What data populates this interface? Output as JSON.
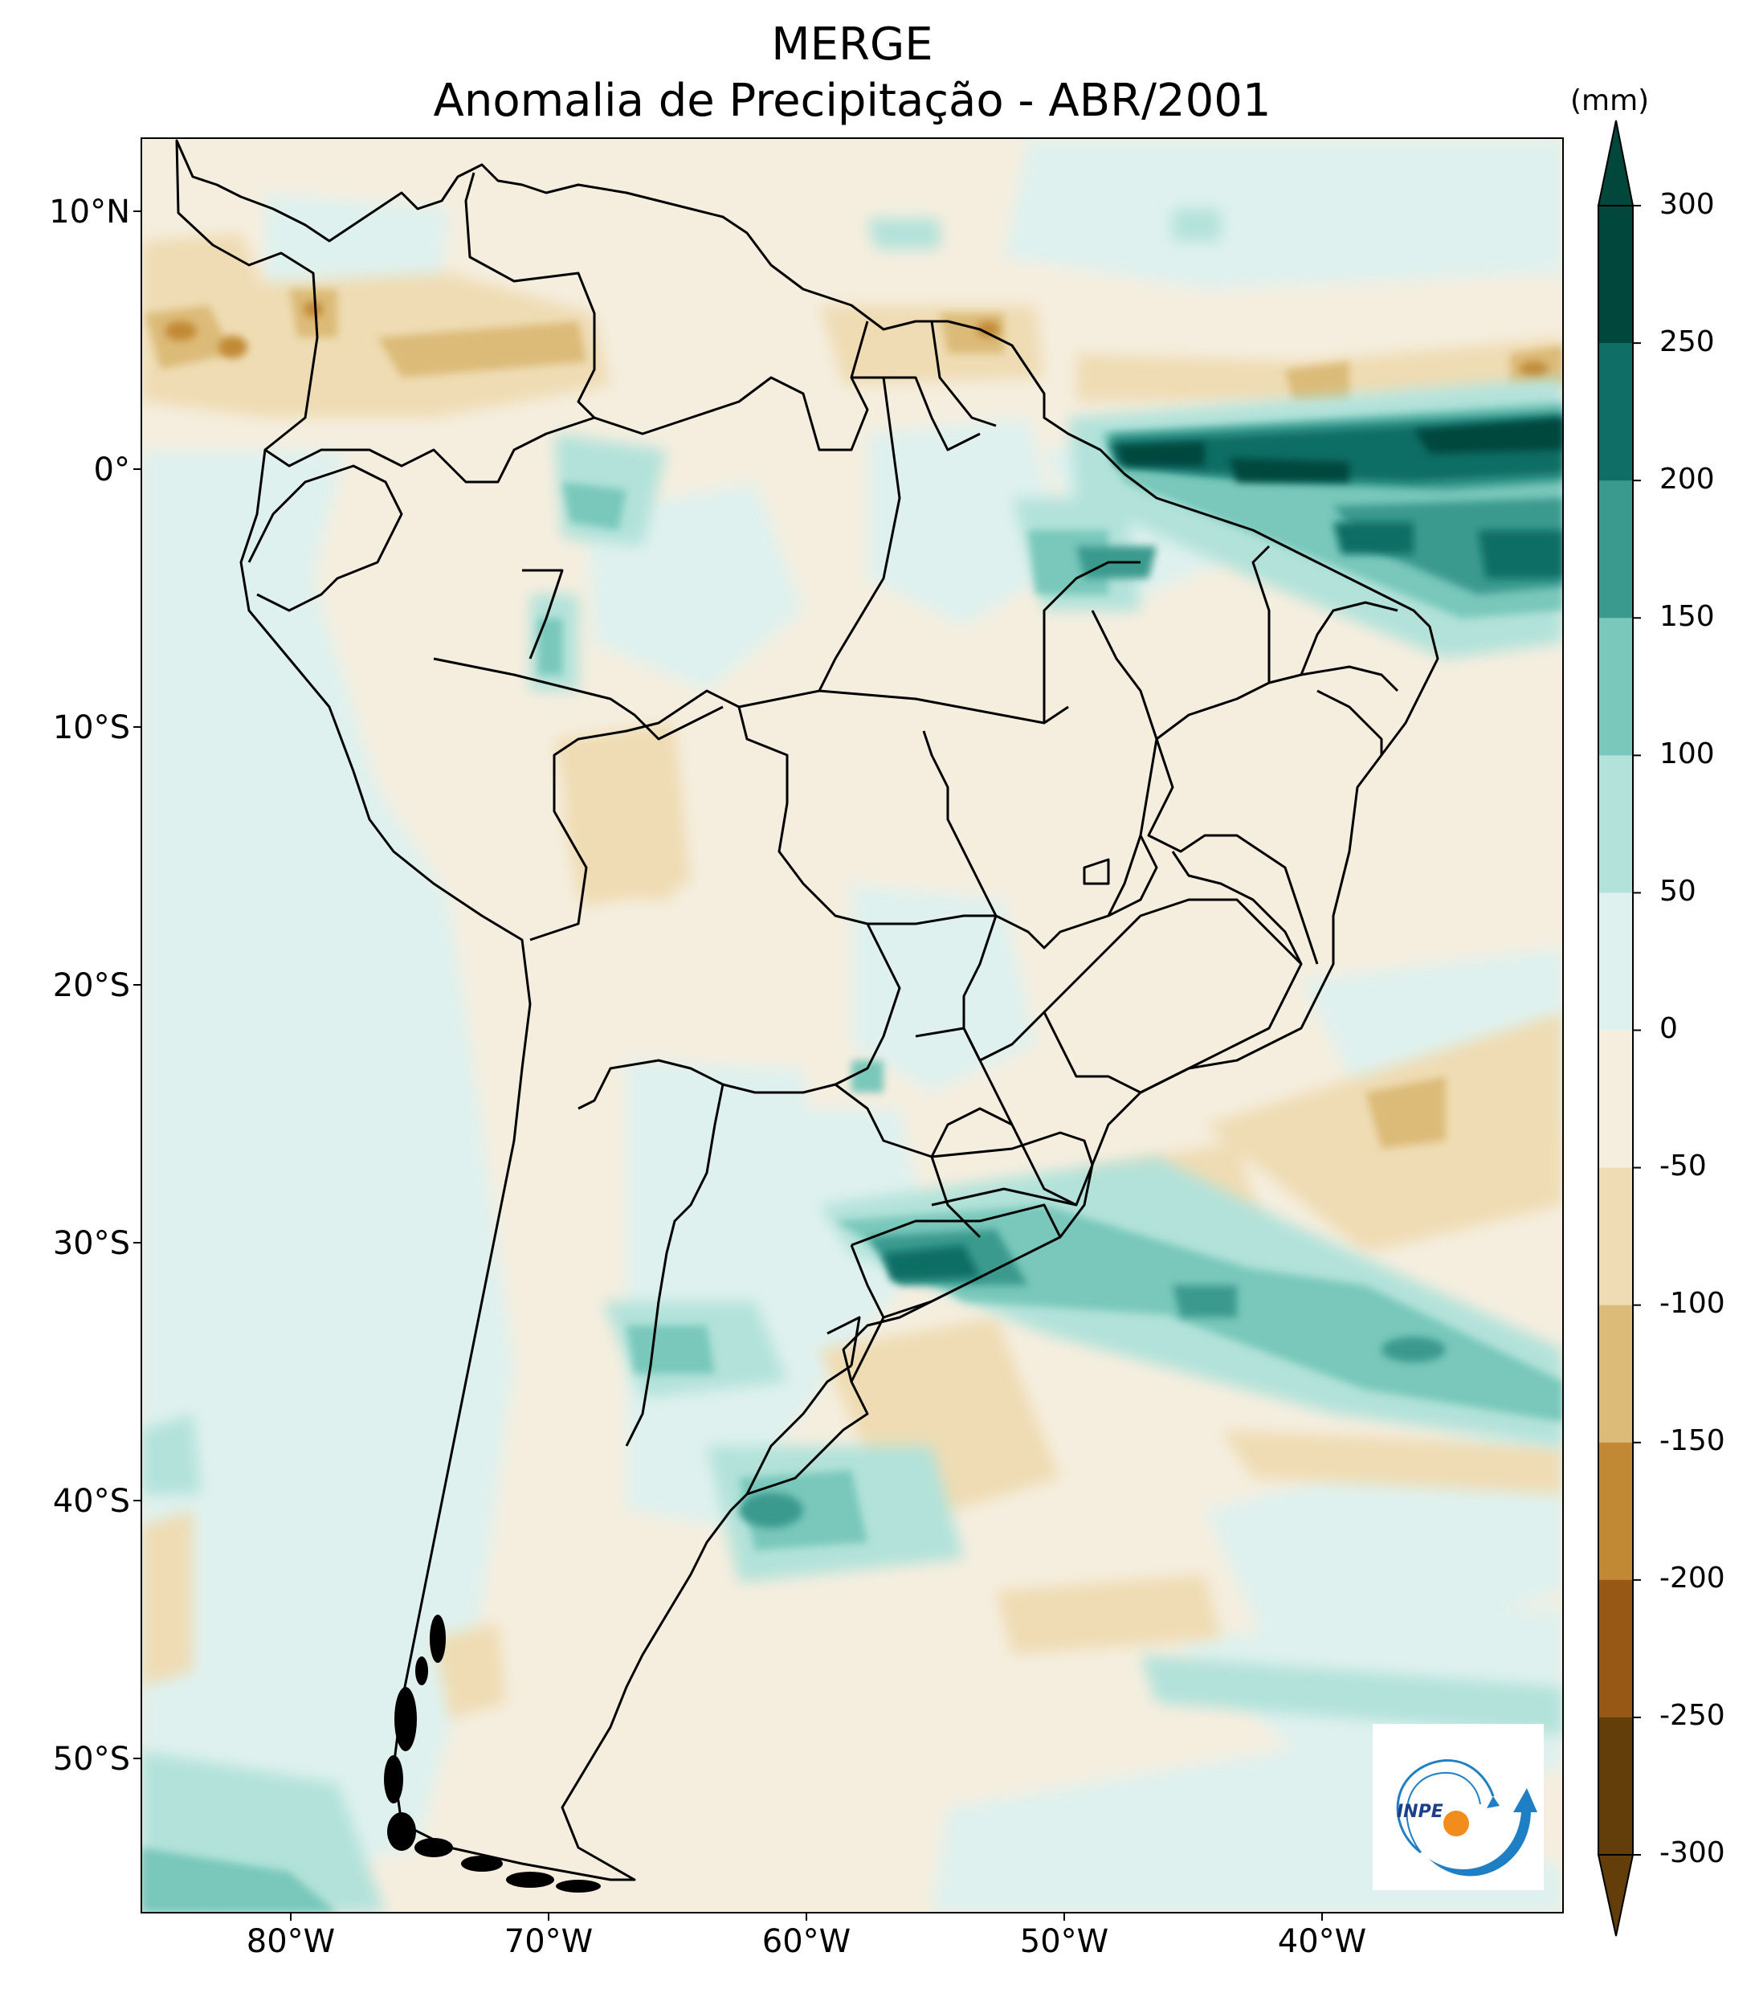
{
  "title": "MERGE",
  "subtitle": "Anomalia de Precipitação - ABR/2001",
  "colorbar": {
    "unit": "(mm)",
    "ticks": [
      "300",
      "250",
      "200",
      "150",
      "100",
      "50",
      "0",
      "-50",
      "-100",
      "-150",
      "-200",
      "-250",
      "-300"
    ],
    "colors": [
      "#01473c",
      "#0f6e66",
      "#3a9a8e",
      "#79c8bb",
      "#b2e2da",
      "#dff1ee",
      "#f5eedf",
      "#efdcb4",
      "#dcbb78",
      "#c28935",
      "#975715",
      "#643e0a"
    ]
  },
  "axes": {
    "lat_labels": [
      "10°N",
      "0°",
      "10°S",
      "20°S",
      "30°S",
      "40°S",
      "50°S"
    ],
    "lon_labels": [
      "80°W",
      "70°W",
      "60°W",
      "50°W",
      "40°W"
    ]
  },
  "logo": {
    "text": "INPE"
  }
}
